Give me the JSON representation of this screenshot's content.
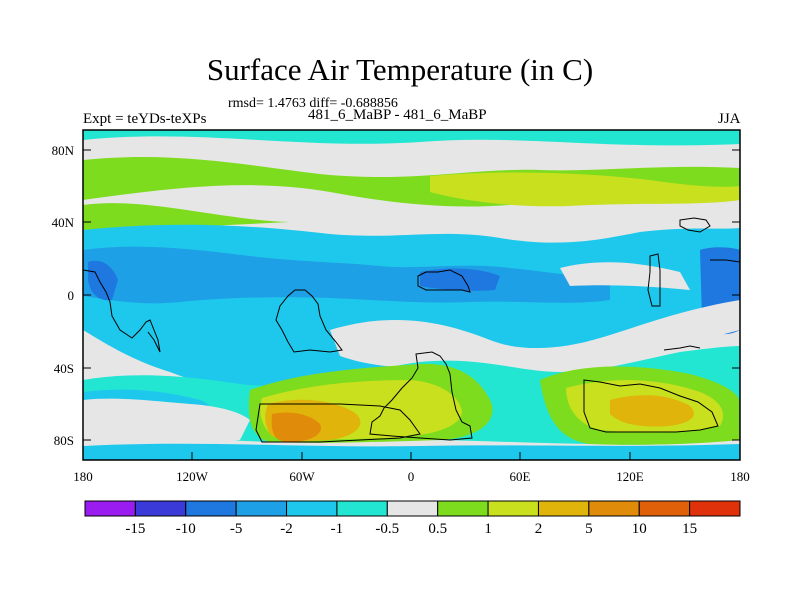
{
  "title": "Surface Air Temperature (in C)",
  "stats": "rmsd= 1.4763 diff= -0.688856",
  "left_label": "Expt = teYDs-teXPs",
  "center_label": "481_6_MaBP - 481_6_MaBP",
  "right_label": "JJA",
  "axes": {
    "lat_ticks": [
      "80N",
      "40N",
      "0",
      "40S",
      "80S"
    ],
    "lon_ticks": [
      "180",
      "120W",
      "60W",
      "0",
      "60E",
      "120E",
      "180"
    ]
  },
  "colorbar": {
    "colors": [
      "#9a1cf0",
      "#3a3ad8",
      "#1e78e0",
      "#1ea0e6",
      "#1ec8ec",
      "#22e6d2",
      "#e6e6e6",
      "#7ddc1e",
      "#c8e01e",
      "#e0b40a",
      "#e08c0a",
      "#e0600a",
      "#e0320a"
    ],
    "labels": [
      "-15",
      "-10",
      "-5",
      "-2",
      "-1",
      "-0.5",
      "0.5",
      "1",
      "2",
      "5",
      "10",
      "15"
    ]
  },
  "palette": {
    "gray": "#e6e6e6",
    "cyan": "#22e6d2",
    "lightblue": "#1ec8ec",
    "midblue": "#1ea0e6",
    "blue": "#1e78e0",
    "green": "#7ddc1e",
    "yellowgreen": "#c8e01e",
    "orange": "#e0b40a",
    "darkorange": "#e08c0a"
  }
}
